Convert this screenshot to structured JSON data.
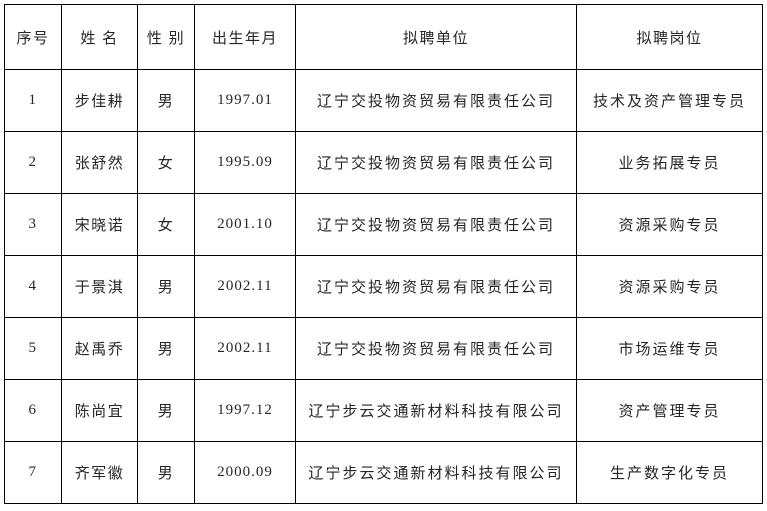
{
  "colors": {
    "background": "#ffffff",
    "border": "#000000",
    "text": "#262626"
  },
  "table": {
    "columns": [
      {
        "key": "index",
        "label": "序号"
      },
      {
        "key": "name",
        "label": "姓 名"
      },
      {
        "key": "gender",
        "label": "性 别"
      },
      {
        "key": "birth",
        "label": "出生年月"
      },
      {
        "key": "unit",
        "label": "拟聘单位"
      },
      {
        "key": "position",
        "label": "拟聘岗位"
      }
    ],
    "rows": [
      {
        "index": "1",
        "name": "步佳耕",
        "gender": "男",
        "birth": "1997.01",
        "unit": "辽宁交投物资贸易有限责任公司",
        "position": "技术及资产管理专员"
      },
      {
        "index": "2",
        "name": "张舒然",
        "gender": "女",
        "birth": "1995.09",
        "unit": "辽宁交投物资贸易有限责任公司",
        "position": "业务拓展专员"
      },
      {
        "index": "3",
        "name": "宋晓诺",
        "gender": "女",
        "birth": "2001.10",
        "unit": "辽宁交投物资贸易有限责任公司",
        "position": "资源采购专员"
      },
      {
        "index": "4",
        "name": "于景淇",
        "gender": "男",
        "birth": "2002.11",
        "unit": "辽宁交投物资贸易有限责任公司",
        "position": "资源采购专员"
      },
      {
        "index": "5",
        "name": "赵禹乔",
        "gender": "男",
        "birth": "2002.11",
        "unit": "辽宁交投物资贸易有限责任公司",
        "position": "市场运维专员"
      },
      {
        "index": "6",
        "name": "陈尚宜",
        "gender": "男",
        "birth": "1997.12",
        "unit": "辽宁步云交通新材料科技有限公司",
        "position": "资产管理专员"
      },
      {
        "index": "7",
        "name": "齐军徽",
        "gender": "男",
        "birth": "2000.09",
        "unit": "辽宁步云交通新材料科技有限公司",
        "position": "生产数字化专员"
      }
    ]
  }
}
